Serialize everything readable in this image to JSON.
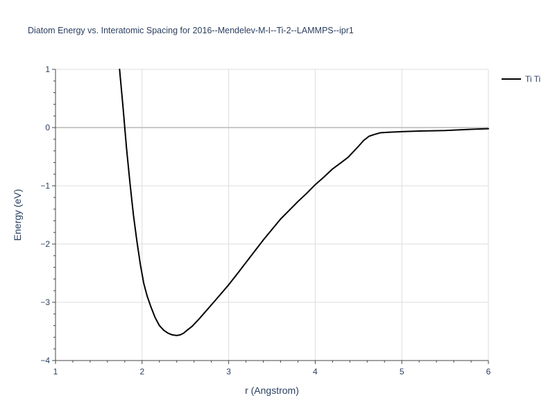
{
  "chart_data": {
    "type": "line",
    "title": "Diatom Energy vs. Interatomic Spacing for 2016--Mendelev-M-I--Ti-2--LAMMPS--ipr1",
    "xlabel": "r (Angstrom)",
    "ylabel": "Energy (eV)",
    "xlim": [
      1,
      6
    ],
    "ylim": [
      -4,
      1
    ],
    "xticks": [
      1,
      2,
      3,
      4,
      5,
      6
    ],
    "xtick_labels": [
      "1",
      "2",
      "3",
      "4",
      "5",
      "6"
    ],
    "yticks": [
      -4,
      -3,
      -2,
      -1,
      0,
      1
    ],
    "ytick_labels": [
      "−4",
      "−3",
      "−2",
      "−1",
      "0",
      "1"
    ],
    "grid": true,
    "legend_position": "top-right",
    "series": [
      {
        "name": "Ti Ti",
        "color": "#000000",
        "x": [
          1.74,
          1.78,
          1.82,
          1.86,
          1.9,
          1.94,
          1.98,
          2.02,
          2.06,
          2.1,
          2.15,
          2.2,
          2.25,
          2.3,
          2.35,
          2.4,
          2.44,
          2.48,
          2.52,
          2.58,
          2.65,
          2.75,
          2.85,
          3.0,
          3.1,
          3.25,
          3.4,
          3.5,
          3.6,
          3.7,
          3.8,
          3.9,
          4.0,
          4.1,
          4.2,
          4.3,
          4.38,
          4.45,
          4.5,
          4.56,
          4.62,
          4.68,
          4.75,
          4.85,
          5.0,
          5.2,
          5.5,
          5.8,
          6.0
        ],
        "y": [
          1.0,
          0.35,
          -0.35,
          -0.95,
          -1.5,
          -1.95,
          -2.35,
          -2.68,
          -2.9,
          -3.07,
          -3.26,
          -3.4,
          -3.48,
          -3.53,
          -3.56,
          -3.57,
          -3.56,
          -3.53,
          -3.48,
          -3.41,
          -3.3,
          -3.13,
          -2.96,
          -2.7,
          -2.51,
          -2.22,
          -1.93,
          -1.75,
          -1.57,
          -1.42,
          -1.27,
          -1.13,
          -0.98,
          -0.85,
          -0.71,
          -0.6,
          -0.51,
          -0.4,
          -0.32,
          -0.22,
          -0.15,
          -0.12,
          -0.09,
          -0.08,
          -0.07,
          -0.06,
          -0.05,
          -0.03,
          -0.02
        ]
      }
    ]
  }
}
